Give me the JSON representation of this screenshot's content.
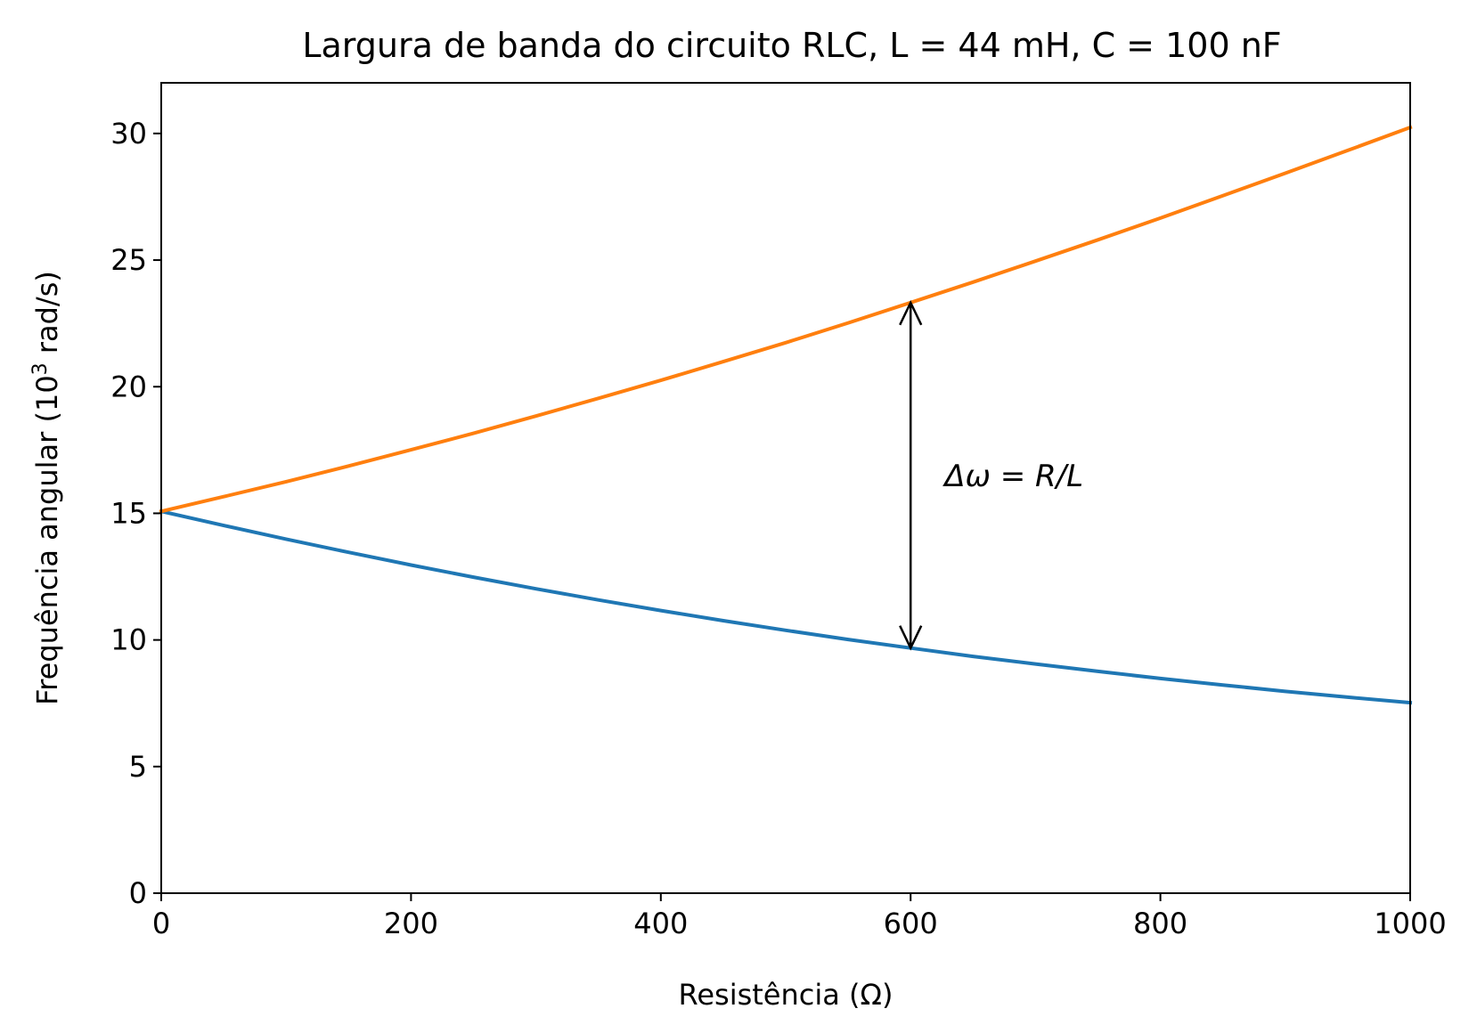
{
  "chart_data": {
    "type": "line",
    "title": "Largura de banda do circuito RLC, L = 44 mH, C = 100 nF",
    "xlabel": "Resistência (Ω)",
    "ylabel_main": "Frequência angular (10",
    "ylabel_sup": "3",
    "ylabel_tail": " rad/s)",
    "xlim": [
      0,
      1000
    ],
    "ylim": [
      0,
      32
    ],
    "xticks": [
      0,
      200,
      400,
      600,
      800,
      1000
    ],
    "yticks": [
      0,
      5,
      10,
      15,
      20,
      25,
      30
    ],
    "grid": false,
    "series": [
      {
        "color": "#1f77b4",
        "x": [
          0,
          50,
          100,
          150,
          200,
          250,
          300,
          350,
          400,
          450,
          500,
          550,
          600,
          650,
          700,
          750,
          800,
          850,
          900,
          950,
          1000
        ],
        "y": [
          15.08,
          14.52,
          13.98,
          13.46,
          12.96,
          12.48,
          12.02,
          11.58,
          11.16,
          10.76,
          10.38,
          10.02,
          9.68,
          9.35,
          9.05,
          8.76,
          8.48,
          8.22,
          7.97,
          7.74,
          7.52
        ]
      },
      {
        "color": "#ff7f0e",
        "x": [
          0,
          50,
          100,
          150,
          200,
          250,
          300,
          350,
          400,
          450,
          500,
          550,
          600,
          650,
          700,
          750,
          800,
          850,
          900,
          950,
          1000
        ],
        "y": [
          15.08,
          15.66,
          16.25,
          16.87,
          17.51,
          18.16,
          18.84,
          19.54,
          20.25,
          20.99,
          21.74,
          22.52,
          23.32,
          24.13,
          24.96,
          25.8,
          26.66,
          27.54,
          28.43,
          29.33,
          30.24
        ]
      }
    ],
    "annotation": {
      "text": "Δω = R/L",
      "arrow_x": 600,
      "arrow_y_from": 9.68,
      "arrow_y_to": 23.32
    }
  }
}
